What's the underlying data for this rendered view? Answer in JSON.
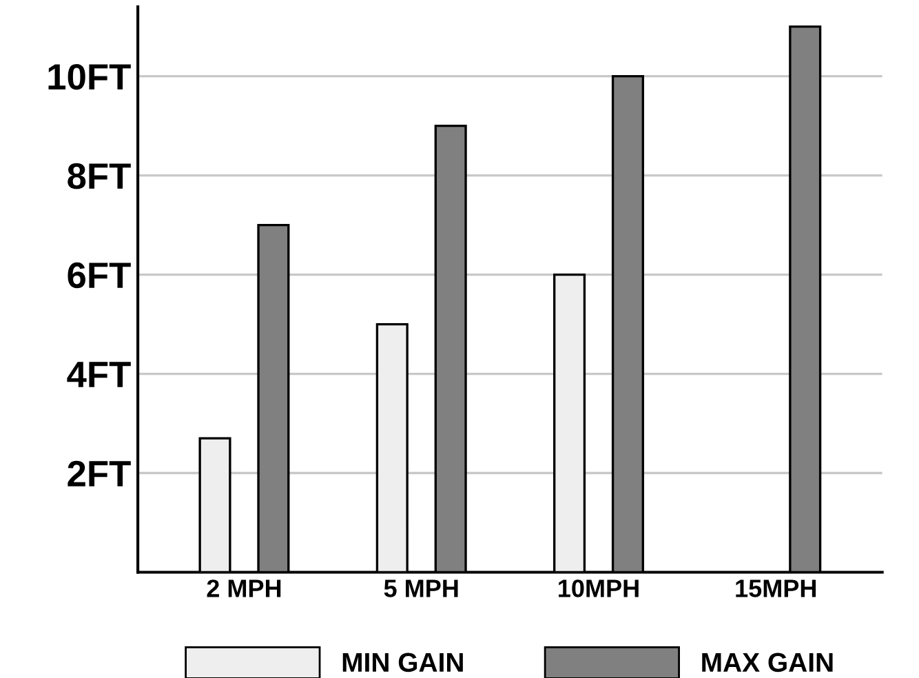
{
  "chart_data": {
    "type": "bar",
    "categories": [
      "2 MPH",
      "5 MPH",
      "10MPH",
      "15MPH"
    ],
    "series": [
      {
        "name": "MIN GAIN",
        "color": "#eeeeee",
        "values": [
          2.7,
          5,
          6,
          null
        ]
      },
      {
        "name": "MAX GAIN",
        "color": "#808080",
        "values": [
          7,
          9,
          10,
          11
        ]
      }
    ],
    "ylim": [
      0,
      11.4
    ],
    "yticks": [
      {
        "value": 2,
        "label": "2FT"
      },
      {
        "value": 4,
        "label": "4FT"
      },
      {
        "value": 6,
        "label": "6FT"
      },
      {
        "value": 8,
        "label": "8FT"
      },
      {
        "value": 10,
        "label": "10FT"
      }
    ],
    "grid": "y",
    "legend": "bottom"
  }
}
